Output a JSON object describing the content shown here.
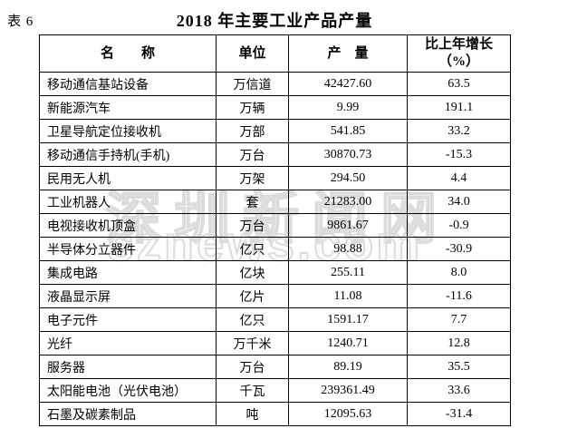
{
  "page": {
    "table_label": "表 6",
    "title": "2018 年主要工业产品产量"
  },
  "watermark": {
    "line1": "深圳新闻网",
    "line2": "sznews.com"
  },
  "table": {
    "columns": {
      "name": "名　　称",
      "unit": "单位",
      "output": "产　量",
      "growth_line1": "比上年增长",
      "growth_line2": "（%）"
    },
    "rows": [
      {
        "name": "移动通信基站设备",
        "unit": "万信道",
        "output": "42427.60",
        "growth": "63.5"
      },
      {
        "name": "新能源汽车",
        "unit": "万辆",
        "output": "9.99",
        "growth": "191.1"
      },
      {
        "name": "卫星导航定位接收机",
        "unit": "万部",
        "output": "541.85",
        "growth": "33.2"
      },
      {
        "name": "移动通信手持机(手机)",
        "unit": "万台",
        "output": "30870.73",
        "growth": "-15.3"
      },
      {
        "name": "民用无人机",
        "unit": "万架",
        "output": "294.50",
        "growth": "4.4"
      },
      {
        "name": "工业机器人",
        "unit": "套",
        "output": "21283.00",
        "growth": "34.0"
      },
      {
        "name": "电视接收机顶盒",
        "unit": "万台",
        "output": "9861.67",
        "growth": "-0.9"
      },
      {
        "name": "半导体分立器件",
        "unit": "亿只",
        "output": "98.88",
        "growth": "-30.9"
      },
      {
        "name": "集成电路",
        "unit": "亿块",
        "output": "255.11",
        "growth": "8.0"
      },
      {
        "name": "液晶显示屏",
        "unit": "亿片",
        "output": "11.08",
        "growth": "-11.6"
      },
      {
        "name": "电子元件",
        "unit": "亿只",
        "output": "1591.17",
        "growth": "7.7"
      },
      {
        "name": "光纤",
        "unit": "万千米",
        "output": "1240.71",
        "growth": "12.8"
      },
      {
        "name": "服务器",
        "unit": "万台",
        "output": "89.19",
        "growth": "35.5"
      },
      {
        "name": "太阳能电池（光伏电池）",
        "unit": "千瓦",
        "output": "239361.49",
        "growth": "33.6"
      },
      {
        "name": "石墨及碳素制品",
        "unit": "吨",
        "output": "12095.63",
        "growth": "-31.4"
      }
    ]
  }
}
